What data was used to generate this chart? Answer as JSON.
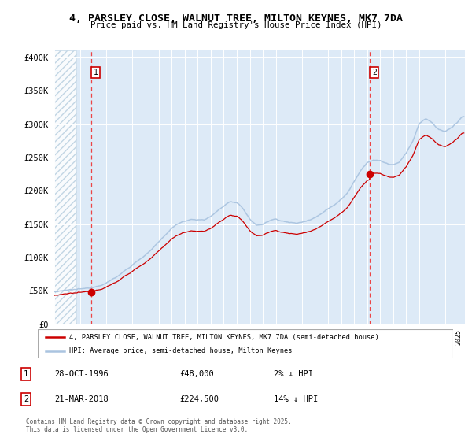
{
  "title": "4, PARSLEY CLOSE, WALNUT TREE, MILTON KEYNES, MK7 7DA",
  "subtitle": "Price paid vs. HM Land Registry's House Price Index (HPI)",
  "legend_line1": "4, PARSLEY CLOSE, WALNUT TREE, MILTON KEYNES, MK7 7DA (semi-detached house)",
  "legend_line2": "HPI: Average price, semi-detached house, Milton Keynes",
  "footer": "Contains HM Land Registry data © Crown copyright and database right 2025.\nThis data is licensed under the Open Government Licence v3.0.",
  "table_rows": [
    {
      "num": "1",
      "date": "28-OCT-1996",
      "price": "£48,000",
      "hpi": "2% ↓ HPI"
    },
    {
      "num": "2",
      "date": "21-MAR-2018",
      "price": "£224,500",
      "hpi": "14% ↓ HPI"
    }
  ],
  "purchase1_year": 1996.83,
  "purchase1_price": 48000,
  "purchase2_year": 2018.22,
  "purchase2_price": 224500,
  "hpi_line_color": "#aac4e0",
  "price_line_color": "#cc0000",
  "dashed_line_color": "#ee3333",
  "plot_bg_color": "#ddeaf7",
  "ylim": [
    0,
    410000
  ],
  "xlim_start": 1994.0,
  "xlim_end": 2025.5,
  "hatch_end": 1995.7
}
